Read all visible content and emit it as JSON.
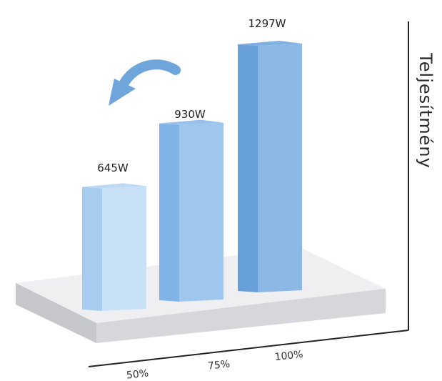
{
  "chart_data": {
    "type": "bar",
    "categories": [
      "50%",
      "75%",
      "100%"
    ],
    "values": [
      645,
      930,
      1297
    ],
    "data_labels": [
      "645W",
      "930W",
      "1297W"
    ],
    "ylabel": "Teljesítmény",
    "xlabel": "",
    "title": "",
    "unit": "W",
    "ylim": [
      0,
      1400
    ],
    "grid": false,
    "legend": "none",
    "colors": {
      "bar_fronts": [
        "#a6cdf0",
        "#80b4e6",
        "#679fda"
      ],
      "bar_sides": [
        "#c9e1f6",
        "#9fc6ec",
        "#8bb8e5"
      ],
      "bar_tops": [
        "#bcd9f3",
        "#97c1ea",
        "#80b0e2"
      ],
      "arrow": "#6ea6db",
      "platform_top": "#efeff1",
      "platform_side": "#cfd0d4"
    }
  }
}
